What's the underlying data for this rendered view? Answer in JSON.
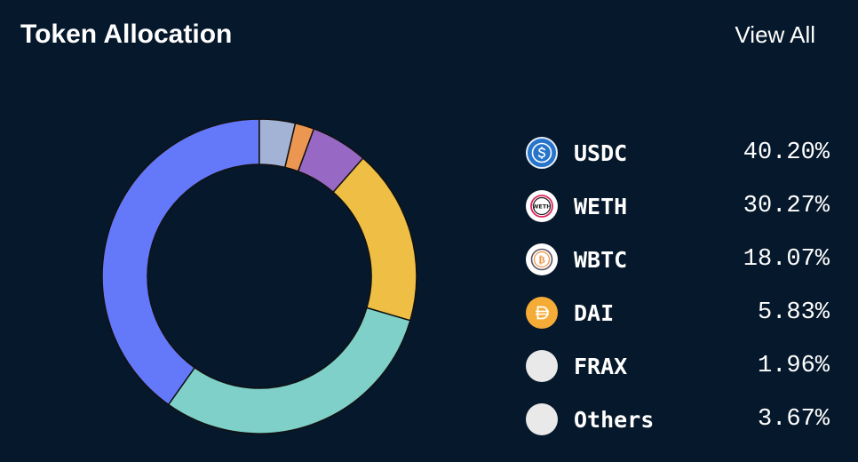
{
  "header": {
    "title": "Token Allocation",
    "view_all_label": "View All"
  },
  "chart_data": {
    "type": "pie",
    "variant": "donut",
    "title": "Token Allocation",
    "start_angle_deg": 90,
    "direction": "counterclockwise",
    "slices": [
      {
        "name": "USDC",
        "value": 40.2,
        "label": "40.20%",
        "color": "#6478fa",
        "icon": "usdc-icon"
      },
      {
        "name": "WETH",
        "value": 30.27,
        "label": "30.27%",
        "color": "#7ed0c9",
        "icon": "weth-icon"
      },
      {
        "name": "WBTC",
        "value": 18.07,
        "label": "18.07%",
        "color": "#eebe45",
        "icon": "wbtc-icon"
      },
      {
        "name": "DAI",
        "value": 5.83,
        "label": "5.83%",
        "color": "#9769c4",
        "icon": "dai-icon"
      },
      {
        "name": "FRAX",
        "value": 1.96,
        "label": "1.96%",
        "color": "#eb9752",
        "icon": "frax-icon"
      },
      {
        "name": "Others",
        "value": 3.67,
        "label": "3.67%",
        "color": "#a2b3d6",
        "icon": "others-icon"
      }
    ],
    "legend_position": "right"
  },
  "colors": {
    "background": "#06182b",
    "text": "#ffffff",
    "slice_border": "#06182b"
  }
}
